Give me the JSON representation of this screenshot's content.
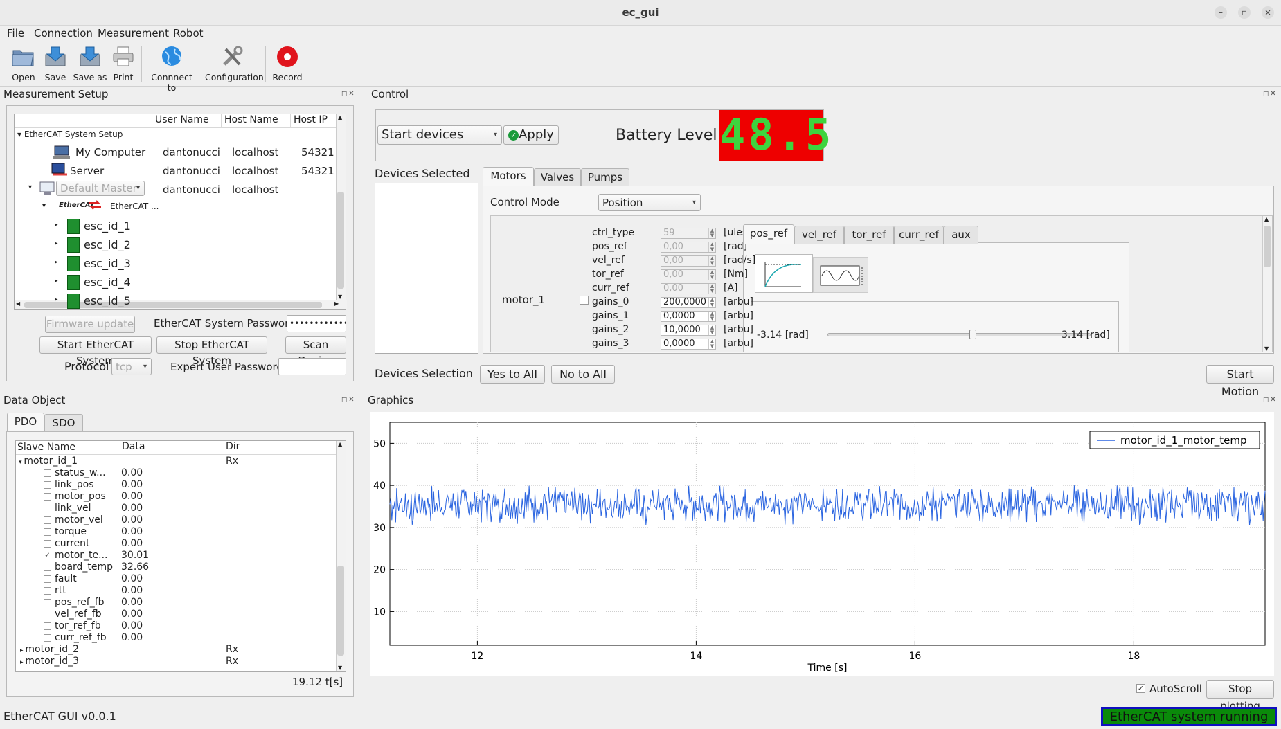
{
  "window": {
    "title": "ec_gui",
    "buttons": [
      "–",
      "▫",
      "×"
    ]
  },
  "menu": [
    "File",
    "Connection",
    "Measurement",
    "Robot"
  ],
  "toolbar": {
    "open": "Open",
    "save": "Save",
    "save_as": "Save as",
    "print": "Print",
    "connect": "Connnect to",
    "configuration": "Configuration",
    "record": "Record"
  },
  "measurement_setup": {
    "title": "Measurement Setup",
    "columns": [
      "User Name",
      "Host Name",
      "Host IP"
    ],
    "root": "EtherCAT System Setup",
    "rows": [
      {
        "name": "My Computer",
        "user": "dantonucci",
        "host": "localhost",
        "ip": "54321"
      },
      {
        "name": "Server",
        "user": "dantonucci",
        "host": "localhost",
        "ip": "54321"
      },
      {
        "name": "Default Master",
        "user": "dantonucci",
        "host": "localhost",
        "ip": ""
      }
    ],
    "ethercat_logo": "EtherCAT",
    "ethercat_node": "EtherCAT ...",
    "escs": [
      "esc_id_1",
      "esc_id_2",
      "esc_id_3",
      "esc_id_4",
      "esc_id_5"
    ],
    "firmware_update": "Firmware update",
    "password_label": "EtherCAT System Password",
    "password_value": "•••••••••••••••",
    "start_btn": "Start EtherCAT System",
    "stop_btn": "Stop EtherCAT System",
    "scan_btn": "Scan Device",
    "protocol_label": "Protocol",
    "protocol_value": "tcp",
    "expert_label": "Expert User Password"
  },
  "control": {
    "title": "Control",
    "start_devices": "Start devices",
    "apply": "Apply",
    "battery_label": "Battery Level",
    "battery_value": "48.5",
    "devices_selected": "Devices Selected",
    "tabs": [
      "Motors",
      "Valves",
      "Pumps"
    ],
    "control_mode_label": "Control Mode",
    "control_mode_value": "Position",
    "motor_name": "motor_1",
    "params": [
      {
        "name": "ctrl_type",
        "value": "59",
        "unit": "[uless]",
        "disabled": true
      },
      {
        "name": "pos_ref",
        "value": "0,00",
        "unit": "[rad]",
        "disabled": true
      },
      {
        "name": "vel_ref",
        "value": "0,00",
        "unit": "[rad/s]",
        "disabled": true
      },
      {
        "name": "tor_ref",
        "value": "0,00",
        "unit": "[Nm]",
        "disabled": true
      },
      {
        "name": "curr_ref",
        "value": "0,00",
        "unit": "[A]",
        "disabled": true
      },
      {
        "name": "gains_0",
        "value": "200,0000",
        "unit": "[arbu]",
        "disabled": false
      },
      {
        "name": "gains_1",
        "value": "0,0000",
        "unit": "[arbu]",
        "disabled": false
      },
      {
        "name": "gains_2",
        "value": "10,0000",
        "unit": "[arbu]",
        "disabled": false
      },
      {
        "name": "gains_3",
        "value": "0,0000",
        "unit": "[arbu]",
        "disabled": false
      }
    ],
    "ref_tabs": [
      "pos_ref",
      "vel_ref",
      "tor_ref",
      "curr_ref",
      "aux"
    ],
    "slider_min": "-3.14",
    "slider_min_unit": "[rad]",
    "slider_max": "3.14",
    "slider_max_unit": "[rad]",
    "slider_level": 0.55,
    "devices_selection_label": "Devices Selection",
    "yes_all": "Yes to All",
    "no_all": "No to All",
    "start_motion": "Start Motion"
  },
  "data_object": {
    "title": "Data Object",
    "tabs": [
      "PDO",
      "SDO"
    ],
    "columns": [
      "Slave Name",
      "Data",
      "Dir"
    ],
    "group": {
      "name": "motor_id_1",
      "dir": "Rx"
    },
    "items": [
      {
        "name": "status_w...",
        "value": "0.00",
        "checked": false
      },
      {
        "name": "link_pos",
        "value": "0.00",
        "checked": false
      },
      {
        "name": "motor_pos",
        "value": "0.00",
        "checked": false
      },
      {
        "name": "link_vel",
        "value": "0.00",
        "checked": false
      },
      {
        "name": "motor_vel",
        "value": "0.00",
        "checked": false
      },
      {
        "name": "torque",
        "value": "0.00",
        "checked": false
      },
      {
        "name": "current",
        "value": "0.00",
        "checked": false
      },
      {
        "name": "motor_te...",
        "value": "30.01",
        "checked": true
      },
      {
        "name": "board_temp",
        "value": "32.66",
        "checked": false
      },
      {
        "name": "fault",
        "value": "0.00",
        "checked": false
      },
      {
        "name": "rtt",
        "value": "0.00",
        "checked": false
      },
      {
        "name": "pos_ref_fb",
        "value": "0.00",
        "checked": false
      },
      {
        "name": "vel_ref_fb",
        "value": "0.00",
        "checked": false
      },
      {
        "name": "tor_ref_fb",
        "value": "0.00",
        "checked": false
      },
      {
        "name": "curr_ref_fb",
        "value": "0.00",
        "checked": false
      }
    ],
    "others": [
      {
        "name": "motor_id_2",
        "dir": "Rx"
      },
      {
        "name": "motor_id_3",
        "dir": "Rx"
      }
    ],
    "time": "19.12 t[s]"
  },
  "graphics": {
    "title": "Graphics",
    "autoscroll": "AutoScroll",
    "stop_plotting": "Stop plotting"
  },
  "chart_data": {
    "type": "line",
    "xlabel": "Time [s]",
    "ylabel": "",
    "xlim": [
      11.2,
      19.2
    ],
    "ylim": [
      2,
      55
    ],
    "xticks": [
      12,
      14,
      16,
      18
    ],
    "yticks": [
      10,
      20,
      30,
      40,
      50
    ],
    "grid": true,
    "legend": "top-right",
    "series": [
      {
        "name": "motor_id_1_motor_temp",
        "color": "#2a64e0",
        "description_range": [
          30,
          40
        ],
        "values": [
          35.2,
          38.1,
          31.4,
          39.5,
          33.0,
          36.8,
          30.6,
          38.9,
          34.1,
          32.2,
          39.8,
          31.0,
          36.5,
          37.9,
          30.4,
          35.7,
          39.2,
          32.8,
          34.6,
          38.4,
          30.9,
          37.1,
          33.5,
          39.6,
          31.8,
          36.2,
          35.0,
          38.7,
          30.5,
          34.9,
          39.1,
          32.4,
          37.6,
          31.2,
          38.0,
          33.8,
          36.9,
          30.7,
          39.4,
          34.3
        ]
      }
    ],
    "legend_label": "motor_id_1_motor_temp"
  },
  "status": {
    "version": "EtherCAT GUI v0.0.1",
    "state": "EtherCAT system running",
    "state_bg": "#0a8a0a",
    "state_border": "#1010c0"
  },
  "colors": {
    "battery_bg": "#ee0000",
    "battery_fg": "#3ed43e",
    "plot_line": "#2a64e0",
    "record": "#e0141c"
  }
}
